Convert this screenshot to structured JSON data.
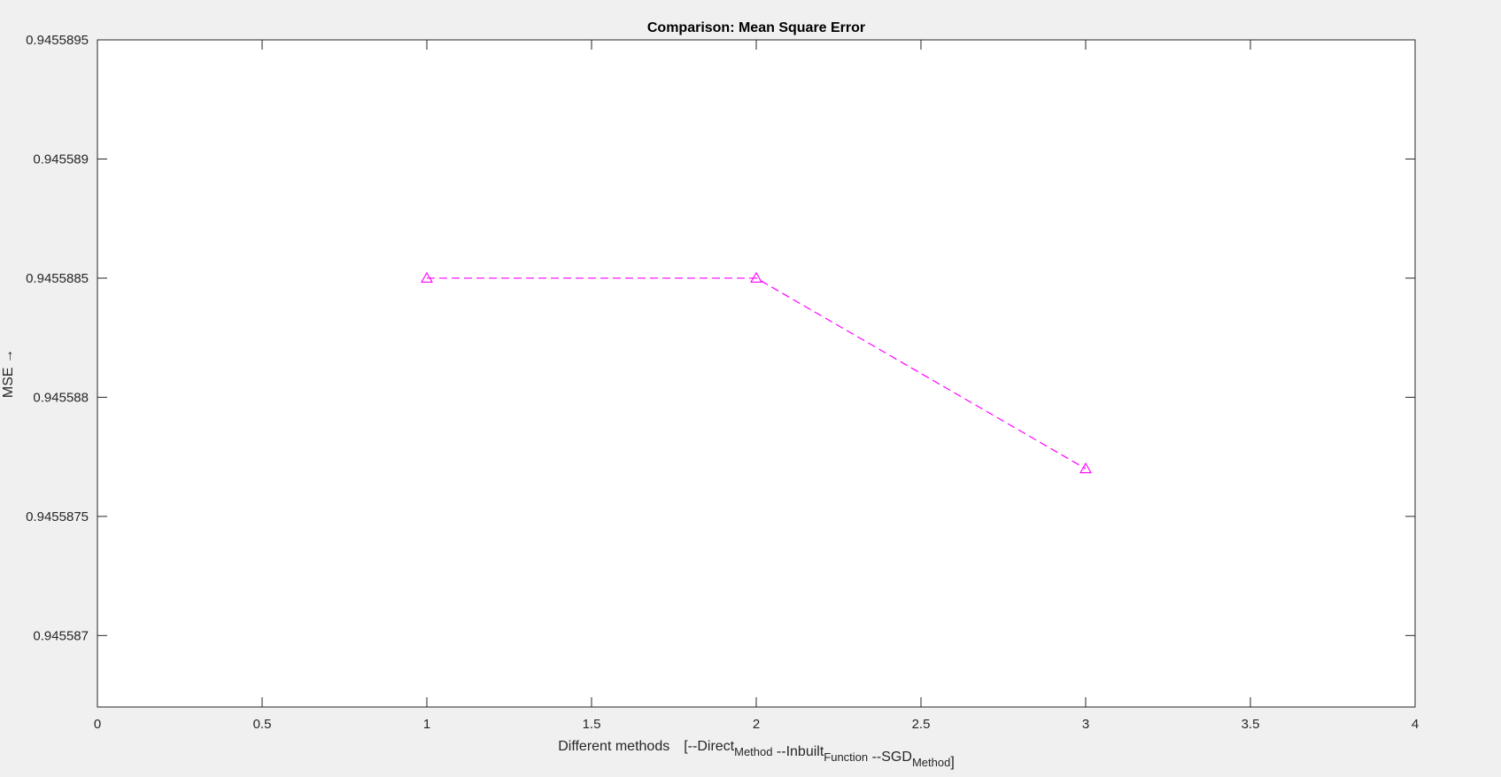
{
  "chart_data": {
    "type": "line",
    "title": "Comparison: Mean Square Error",
    "xlabel": {
      "prefix": "Different methods",
      "bracket_open": "[",
      "parts": [
        {
          "text": "--Direct",
          "sub": "Method"
        },
        {
          "text": " --Inbuilt",
          "sub": "Function"
        },
        {
          "text": " --SGD",
          "sub": "Method"
        }
      ],
      "bracket_close": "]"
    },
    "ylabel": "MSE →",
    "xlim": [
      0,
      4
    ],
    "ylim": [
      0.9455867,
      0.9455895
    ],
    "x_ticks": [
      0,
      0.5,
      1,
      1.5,
      2,
      2.5,
      3,
      3.5,
      4
    ],
    "x_tick_labels": [
      "0",
      "0.5",
      "1",
      "1.5",
      "2",
      "2.5",
      "3",
      "3.5",
      "4"
    ],
    "y_ticks": [
      0.945587,
      0.9455875,
      0.945588,
      0.9455885,
      0.945589,
      0.9455895
    ],
    "y_tick_labels": [
      "0.945587",
      "0.9455875",
      "0.945588",
      "0.9455885",
      "0.945589",
      "0.9455895"
    ],
    "grid": false,
    "series": [
      {
        "name": "MSE",
        "x": [
          1,
          2,
          3
        ],
        "y": [
          0.9455885,
          0.9455885,
          0.9455877
        ],
        "color": "#ff00ff",
        "line_style": "dashed",
        "marker": "triangle"
      }
    ]
  },
  "colors": {
    "figure_background": "#f0f0f0",
    "axes_background": "#ffffff",
    "axis_color": "#262626"
  }
}
